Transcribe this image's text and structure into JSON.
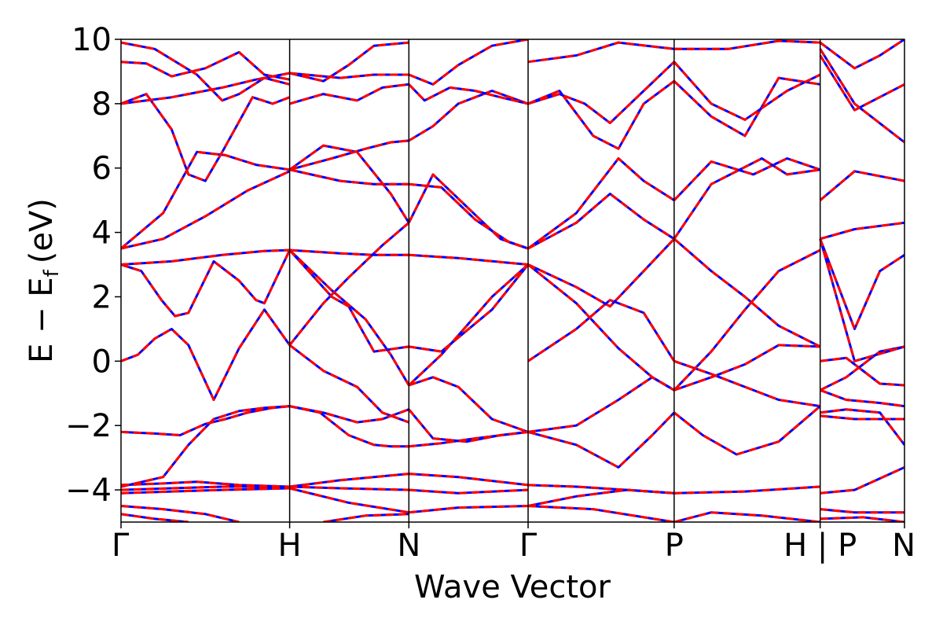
{
  "chart_data": {
    "type": "line",
    "title": "",
    "xlabel": "Wave Vector",
    "ylabel_main": "E − E",
    "ylabel_sub": "f",
    "ylabel_unit": "(eV)",
    "ylim": [
      -5,
      10
    ],
    "yticks": [
      -4,
      -2,
      0,
      2,
      4,
      6,
      8,
      10
    ],
    "ytick_labels": [
      "−4",
      "−2",
      "0",
      "2",
      "4",
      "6",
      "8",
      "10"
    ],
    "kpoints": [
      {
        "label": "Γ",
        "x": 0.0
      },
      {
        "label": "H",
        "x": 1.0
      },
      {
        "label": "N",
        "x": 1.707
      },
      {
        "label": "Γ",
        "x": 2.414
      },
      {
        "label": "P",
        "x": 3.28
      },
      {
        "label": "H | P",
        "x": 4.146
      },
      {
        "label": "N",
        "x": 4.646
      }
    ],
    "xlim": [
      0.0,
      4.646
    ],
    "grid": false,
    "series": [
      {
        "color": "#0000ff",
        "style": "solid",
        "width": 3
      },
      {
        "color": "#ff0000",
        "style": "dashed",
        "width": 3
      }
    ],
    "bands": [
      {
        "x": [
          0.0,
          0.1,
          0.2,
          0.3,
          0.4,
          0.55,
          0.7,
          0.85,
          1.0
        ],
        "y": [
          0.0,
          0.2,
          0.7,
          1.0,
          0.5,
          -1.2,
          0.4,
          1.6,
          0.5
        ]
      },
      {
        "x": [
          0.0,
          0.12,
          0.24,
          0.32,
          0.4,
          0.55,
          0.7,
          0.8,
          0.85,
          1.0
        ],
        "y": [
          3.0,
          2.8,
          1.9,
          1.4,
          1.5,
          3.1,
          2.5,
          1.9,
          1.8,
          3.45
        ]
      },
      {
        "x": [
          0.0,
          0.3,
          0.6,
          0.85,
          1.0
        ],
        "y": [
          3.0,
          3.1,
          3.3,
          3.42,
          3.45
        ]
      },
      {
        "x": [
          0.0,
          0.2,
          0.35,
          0.5,
          0.62,
          0.75,
          0.9,
          1.0
        ],
        "y": [
          -2.2,
          -2.25,
          -2.3,
          -1.95,
          -1.8,
          -1.6,
          -1.45,
          -1.4
        ]
      },
      {
        "x": [
          0.0,
          0.25,
          0.4,
          0.55,
          0.7,
          0.85,
          1.0
        ],
        "y": [
          -3.9,
          -3.6,
          -2.6,
          -1.8,
          -1.55,
          -1.45,
          -1.4
        ]
      },
      {
        "x": [
          0.0,
          0.25,
          0.45,
          0.7,
          1.0
        ],
        "y": [
          -3.85,
          -3.8,
          -3.75,
          -3.85,
          -3.9
        ]
      },
      {
        "x": [
          0.0,
          0.3,
          0.6,
          1.0
        ],
        "y": [
          -4.0,
          -3.95,
          -3.9,
          -3.9
        ]
      },
      {
        "x": [
          0.0,
          0.3,
          0.6,
          1.0
        ],
        "y": [
          -4.1,
          -4.05,
          -4.0,
          -3.95
        ]
      },
      {
        "x": [
          0.0,
          0.25,
          0.5,
          0.7
        ],
        "y": [
          -4.5,
          -4.6,
          -4.75,
          -5.0
        ]
      },
      {
        "x": [
          0.0,
          0.2,
          0.4
        ],
        "y": [
          -4.75,
          -4.9,
          -5.0
        ]
      },
      {
        "x": [
          0.0,
          0.25,
          0.5,
          0.75,
          1.0
        ],
        "y": [
          3.5,
          3.8,
          4.5,
          5.3,
          5.9
        ]
      },
      {
        "x": [
          0.0,
          0.25,
          0.45,
          0.62,
          0.8,
          1.0
        ],
        "y": [
          3.5,
          4.6,
          6.5,
          6.4,
          6.1,
          5.95
        ]
      },
      {
        "x": [
          0.0,
          0.15,
          0.3,
          0.4,
          0.5,
          0.6,
          0.78,
          0.9,
          1.0
        ],
        "y": [
          8.0,
          8.3,
          7.2,
          5.8,
          5.6,
          6.5,
          8.2,
          8.0,
          8.2
        ]
      },
      {
        "x": [
          0.0,
          0.3,
          0.6,
          0.8,
          1.0
        ],
        "y": [
          8.0,
          8.2,
          8.5,
          8.75,
          8.95
        ]
      },
      {
        "x": [
          0.0,
          0.15,
          0.3,
          0.5,
          0.7,
          0.85,
          1.0
        ],
        "y": [
          9.3,
          9.25,
          8.85,
          9.1,
          9.6,
          8.9,
          8.75
        ]
      },
      {
        "x": [
          0.0,
          0.2,
          0.45,
          0.6,
          0.7,
          0.85,
          1.0
        ],
        "y": [
          9.9,
          9.7,
          8.9,
          8.1,
          8.3,
          8.8,
          8.6
        ]
      },
      {
        "x": [
          1.0,
          1.2,
          1.4,
          1.55,
          1.707
        ],
        "y": [
          0.5,
          -0.3,
          -0.8,
          -1.6,
          -1.9
        ]
      },
      {
        "x": [
          1.0,
          1.18,
          1.35,
          1.5,
          1.6,
          1.707
        ],
        "y": [
          -1.4,
          -1.6,
          -2.3,
          -2.6,
          -2.65,
          -2.65
        ]
      },
      {
        "x": [
          1.0,
          1.2,
          1.4,
          1.55,
          1.707
        ],
        "y": [
          -1.4,
          -1.6,
          -1.9,
          -1.8,
          -1.5
        ]
      },
      {
        "x": [
          1.0,
          1.25,
          1.45,
          1.6,
          1.707
        ],
        "y": [
          3.45,
          2.2,
          1.3,
          0.2,
          -0.75
        ]
      },
      {
        "x": [
          1.0,
          1.25,
          1.35,
          1.5,
          1.707
        ],
        "y": [
          3.45,
          2.0,
          1.7,
          0.3,
          0.45
        ]
      },
      {
        "x": [
          1.0,
          1.3,
          1.5,
          1.707
        ],
        "y": [
          3.45,
          3.35,
          3.3,
          3.3
        ]
      },
      {
        "x": [
          1.0,
          1.2,
          1.35,
          1.55,
          1.707
        ],
        "y": [
          0.5,
          1.8,
          2.6,
          3.6,
          4.3
        ]
      },
      {
        "x": [
          1.0,
          1.3,
          1.5,
          1.707
        ],
        "y": [
          5.95,
          5.6,
          5.5,
          5.5
        ]
      },
      {
        "x": [
          1.0,
          1.2,
          1.4,
          1.6,
          1.707
        ],
        "y": [
          5.95,
          6.7,
          6.5,
          5.2,
          4.3
        ]
      },
      {
        "x": [
          1.0,
          1.25,
          1.45,
          1.6,
          1.707
        ],
        "y": [
          5.95,
          6.3,
          6.6,
          6.8,
          6.85
        ]
      },
      {
        "x": [
          1.0,
          1.2,
          1.4,
          1.55,
          1.707
        ],
        "y": [
          8.0,
          8.3,
          8.1,
          8.5,
          8.6
        ]
      },
      {
        "x": [
          1.0,
          1.2,
          1.35,
          1.5,
          1.707
        ],
        "y": [
          8.95,
          8.7,
          9.2,
          9.8,
          9.9
        ]
      },
      {
        "x": [
          1.0,
          1.3,
          1.5,
          1.707
        ],
        "y": [
          8.95,
          8.8,
          8.9,
          8.9
        ]
      },
      {
        "x": [
          1.0,
          1.3,
          1.707
        ],
        "y": [
          -3.9,
          -3.7,
          -3.5
        ]
      },
      {
        "x": [
          1.0,
          1.3,
          1.707
        ],
        "y": [
          -3.9,
          -3.95,
          -4.0
        ]
      },
      {
        "x": [
          1.0,
          1.35,
          1.707
        ],
        "y": [
          -3.95,
          -4.4,
          -4.7
        ]
      },
      {
        "x": [
          1.2,
          1.45,
          1.707
        ],
        "y": [
          -5.0,
          -4.8,
          -4.75
        ]
      },
      {
        "x": [
          1.707,
          1.85,
          2.0,
          2.2,
          2.414
        ],
        "y": [
          -0.75,
          -0.5,
          -0.8,
          -1.8,
          -2.2
        ]
      },
      {
        "x": [
          1.707,
          1.85,
          2.05,
          2.25,
          2.414
        ],
        "y": [
          -1.5,
          -2.4,
          -2.5,
          -2.3,
          -2.2
        ]
      },
      {
        "x": [
          1.707,
          1.9,
          2.1,
          2.414
        ],
        "y": [
          -2.65,
          -2.55,
          -2.4,
          -2.2
        ]
      },
      {
        "x": [
          1.707,
          1.9,
          2.2,
          2.414
        ],
        "y": [
          0.45,
          0.3,
          1.6,
          3.0
        ]
      },
      {
        "x": [
          1.707,
          1.9,
          2.2,
          2.414
        ],
        "y": [
          -0.75,
          0.2,
          2.0,
          3.0
        ]
      },
      {
        "x": [
          1.707,
          2.0,
          2.414
        ],
        "y": [
          3.3,
          3.2,
          3.0
        ]
      },
      {
        "x": [
          1.707,
          1.85,
          2.05,
          2.25,
          2.414
        ],
        "y": [
          4.3,
          5.8,
          4.8,
          3.8,
          3.5
        ]
      },
      {
        "x": [
          1.707,
          1.9,
          2.1,
          2.3,
          2.414
        ],
        "y": [
          5.5,
          5.4,
          4.4,
          3.7,
          3.5
        ]
      },
      {
        "x": [
          1.707,
          1.85,
          2.0,
          2.2,
          2.414
        ],
        "y": [
          6.85,
          7.3,
          8.0,
          8.4,
          8.0
        ]
      },
      {
        "x": [
          1.707,
          1.8,
          1.95,
          2.1,
          2.25,
          2.414
        ],
        "y": [
          8.6,
          8.1,
          8.5,
          8.4,
          8.2,
          8.0
        ]
      },
      {
        "x": [
          1.707,
          1.85,
          2.0,
          2.2,
          2.414
        ],
        "y": [
          8.9,
          8.6,
          9.2,
          9.8,
          10.0
        ]
      },
      {
        "x": [
          1.707,
          2.0,
          2.414
        ],
        "y": [
          -3.5,
          -3.6,
          -3.85
        ]
      },
      {
        "x": [
          1.707,
          2.0,
          2.414
        ],
        "y": [
          -4.0,
          -4.1,
          -4.0
        ]
      },
      {
        "x": [
          1.707,
          2.0,
          2.414
        ],
        "y": [
          -4.7,
          -4.55,
          -4.5
        ]
      },
      {
        "x": [
          2.414,
          2.7,
          2.95,
          3.15,
          3.28
        ],
        "y": [
          -2.2,
          -2.0,
          -1.2,
          -0.5,
          -0.9
        ]
      },
      {
        "x": [
          2.414,
          2.7,
          2.95,
          3.15,
          3.28
        ],
        "y": [
          -2.2,
          -2.6,
          -3.3,
          -2.3,
          -1.6
        ]
      },
      {
        "x": [
          2.414,
          2.7,
          2.9,
          3.1,
          3.28
        ],
        "y": [
          0.0,
          1.0,
          1.9,
          1.5,
          0.0
        ]
      },
      {
        "x": [
          2.414,
          2.7,
          2.95,
          3.15,
          3.28
        ],
        "y": [
          3.0,
          1.8,
          0.4,
          -0.5,
          -0.9
        ]
      },
      {
        "x": [
          2.414,
          2.7,
          2.9,
          3.1,
          3.28
        ],
        "y": [
          3.0,
          2.3,
          1.7,
          2.8,
          3.8
        ]
      },
      {
        "x": [
          2.414,
          2.7,
          2.95,
          3.1,
          3.28
        ],
        "y": [
          3.5,
          4.6,
          6.3,
          5.6,
          5.0
        ]
      },
      {
        "x": [
          2.414,
          2.7,
          2.9,
          3.1,
          3.28
        ],
        "y": [
          3.5,
          4.3,
          5.2,
          4.4,
          3.8
        ]
      },
      {
        "x": [
          2.414,
          2.6,
          2.8,
          2.95,
          3.1,
          3.28
        ],
        "y": [
          8.0,
          8.4,
          7.0,
          6.6,
          8.0,
          8.7
        ]
      },
      {
        "x": [
          2.414,
          2.6,
          2.75,
          2.9,
          3.1,
          3.28
        ],
        "y": [
          8.0,
          8.3,
          8.0,
          7.4,
          8.4,
          9.3
        ]
      },
      {
        "x": [
          2.414,
          2.7,
          2.95,
          3.28
        ],
        "y": [
          9.3,
          9.5,
          9.9,
          9.7
        ]
      },
      {
        "x": [
          2.414,
          2.7,
          3.0,
          3.28
        ],
        "y": [
          -3.85,
          -3.9,
          -4.0,
          -4.1
        ]
      },
      {
        "x": [
          2.414,
          2.7,
          3.0,
          3.28
        ],
        "y": [
          -4.5,
          -4.2,
          -4.0,
          -4.1
        ]
      },
      {
        "x": [
          2.414,
          2.8,
          3.28
        ],
        "y": [
          -4.5,
          -4.6,
          -5.0
        ]
      },
      {
        "x": [
          3.28,
          3.5,
          3.7,
          3.9,
          4.146
        ],
        "y": [
          0.0,
          -0.4,
          -0.8,
          -1.2,
          -1.4
        ]
      },
      {
        "x": [
          3.28,
          3.5,
          3.7,
          3.9,
          4.146
        ],
        "y": [
          -0.9,
          -0.5,
          -0.1,
          0.5,
          0.45
        ]
      },
      {
        "x": [
          3.28,
          3.45,
          3.65,
          3.9,
          4.146
        ],
        "y": [
          -1.6,
          -2.3,
          -2.9,
          -2.5,
          -1.4
        ]
      },
      {
        "x": [
          3.28,
          3.5,
          3.7,
          3.9,
          4.146
        ],
        "y": [
          3.8,
          2.8,
          2.0,
          1.1,
          0.45
        ]
      },
      {
        "x": [
          3.28,
          3.5,
          3.7,
          3.9,
          4.146
        ],
        "y": [
          -0.9,
          0.3,
          1.6,
          2.8,
          3.45
        ]
      },
      {
        "x": [
          3.28,
          3.5,
          3.75,
          3.95,
          4.146
        ],
        "y": [
          5.0,
          6.2,
          5.8,
          6.3,
          5.95
        ]
      },
      {
        "x": [
          3.28,
          3.5,
          3.8,
          3.95,
          4.146
        ],
        "y": [
          3.8,
          5.5,
          6.3,
          5.8,
          5.95
        ]
      },
      {
        "x": [
          3.28,
          3.5,
          3.7,
          3.9,
          4.146
        ],
        "y": [
          8.7,
          7.6,
          7.0,
          8.8,
          8.6
        ]
      },
      {
        "x": [
          3.28,
          3.5,
          3.7,
          3.95,
          4.146
        ],
        "y": [
          9.3,
          8.0,
          7.5,
          8.4,
          8.9
        ]
      },
      {
        "x": [
          3.28,
          3.6,
          3.9,
          4.146
        ],
        "y": [
          9.7,
          9.7,
          9.95,
          9.9
        ]
      },
      {
        "x": [
          3.28,
          3.7,
          4.146
        ],
        "y": [
          -4.1,
          -4.05,
          -3.9
        ]
      },
      {
        "x": [
          3.28,
          3.5,
          3.8,
          4.146
        ],
        "y": [
          -5.0,
          -4.7,
          -4.8,
          -5.0
        ]
      },
      {
        "x": [
          4.146,
          4.3,
          4.5,
          4.646
        ],
        "y": [
          0.0,
          0.1,
          -0.7,
          -0.75
        ]
      },
      {
        "x": [
          4.146,
          4.3,
          4.5,
          4.646
        ],
        "y": [
          -0.9,
          -0.5,
          0.3,
          0.45
        ]
      },
      {
        "x": [
          4.146,
          4.3,
          4.5,
          4.646
        ],
        "y": [
          -0.9,
          -1.2,
          -1.3,
          -1.4
        ]
      },
      {
        "x": [
          4.146,
          4.3,
          4.5,
          4.646
        ],
        "y": [
          -1.6,
          -1.5,
          -1.6,
          -2.6
        ]
      },
      {
        "x": [
          4.146,
          4.35,
          4.646
        ],
        "y": [
          -1.7,
          -1.8,
          -1.8
        ]
      },
      {
        "x": [
          4.146,
          4.35,
          4.646
        ],
        "y": [
          3.8,
          0.0,
          0.45
        ]
      },
      {
        "x": [
          4.146,
          4.35,
          4.5,
          4.646
        ],
        "y": [
          3.8,
          1.0,
          2.8,
          3.3
        ]
      },
      {
        "x": [
          4.146,
          4.35,
          4.646
        ],
        "y": [
          3.8,
          4.1,
          4.3
        ]
      },
      {
        "x": [
          4.146,
          4.35,
          4.646
        ],
        "y": [
          5.0,
          5.9,
          5.6
        ]
      },
      {
        "x": [
          4.146,
          4.35,
          4.646
        ],
        "y": [
          9.7,
          8.0,
          6.8
        ]
      },
      {
        "x": [
          4.146,
          4.35,
          4.646
        ],
        "y": [
          9.5,
          7.8,
          8.6
        ]
      },
      {
        "x": [
          4.146,
          4.35,
          4.5,
          4.646
        ],
        "y": [
          9.9,
          9.1,
          9.5,
          10.0
        ]
      },
      {
        "x": [
          4.146,
          4.35,
          4.646
        ],
        "y": [
          -4.1,
          -4.0,
          -3.3
        ]
      },
      {
        "x": [
          4.146,
          4.35,
          4.646
        ],
        "y": [
          -4.6,
          -4.7,
          -4.7
        ]
      },
      {
        "x": [
          4.146,
          4.4,
          4.646
        ],
        "y": [
          -4.9,
          -4.85,
          -5.0
        ]
      }
    ]
  }
}
